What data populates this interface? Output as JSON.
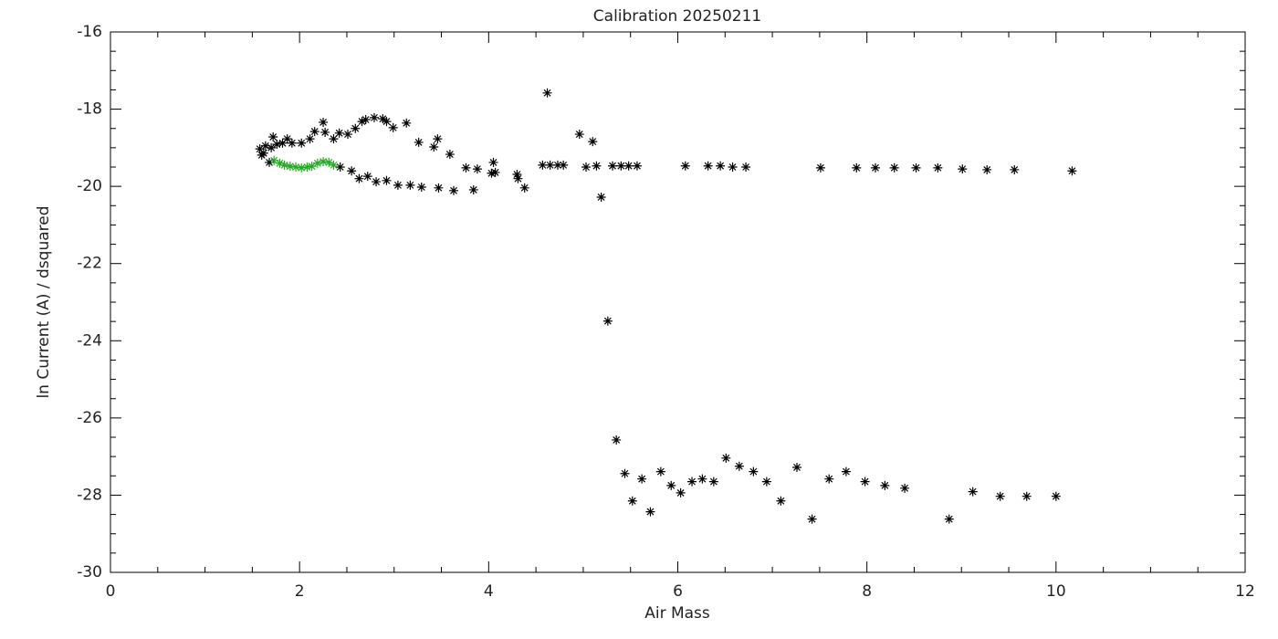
{
  "chart_data": {
    "type": "scatter",
    "title": "Calibration 20250211",
    "x_label": "Air Mass",
    "y_label": "ln Current (A) / dsquared",
    "xlim": [
      0,
      12
    ],
    "xticks": [
      0,
      2,
      4,
      6,
      8,
      10,
      12
    ],
    "ylim": [
      -30,
      -16
    ],
    "yticks": [
      -30,
      -28,
      -26,
      -24,
      -22,
      -20,
      -18,
      -16
    ],
    "marker": "asterisk",
    "series": [
      {
        "color": "#000000",
        "x": [
          4.62,
          4.96,
          5.1,
          5.19,
          5.26,
          5.35,
          5.44,
          5.52,
          5.62,
          5.71,
          5.82,
          5.93,
          6.03,
          6.15,
          6.26,
          6.38,
          6.51,
          6.65,
          6.8,
          6.94,
          7.09,
          7.26,
          7.42,
          7.6,
          7.78,
          7.98,
          8.19,
          8.4,
          8.87,
          9.12,
          9.41,
          9.69,
          10.0,
          4.57,
          4.65,
          4.73,
          4.79,
          5.03,
          5.14,
          5.31,
          5.4,
          5.48,
          5.57,
          6.08,
          6.32,
          6.45,
          6.58,
          6.72,
          7.51,
          7.89,
          8.09,
          8.29,
          8.52,
          8.75,
          9.01,
          9.27,
          9.56,
          10.17,
          2.43,
          2.55,
          2.63,
          2.72,
          2.81,
          2.92,
          3.04,
          3.17,
          3.29,
          3.47,
          3.63,
          3.84,
          3.76,
          3.88,
          4.03,
          4.07,
          4.05,
          4.3,
          4.31,
          4.38,
          1.72,
          1.87,
          2.02,
          2.11,
          2.16,
          2.25,
          2.27,
          2.36,
          2.42,
          2.51,
          2.59,
          2.66,
          2.7,
          2.79,
          2.88,
          2.92,
          2.99,
          3.13,
          3.26,
          3.42,
          3.46,
          3.59,
          1.58,
          1.6,
          1.62,
          1.64,
          1.68,
          1.7,
          1.76,
          1.82,
          1.92
        ],
        "values": [
          -17.58,
          -18.65,
          -18.84,
          -20.28,
          -23.49,
          -26.57,
          -27.44,
          -28.15,
          -27.58,
          -28.43,
          -27.39,
          -27.75,
          -27.94,
          -27.65,
          -27.58,
          -27.65,
          -27.04,
          -27.25,
          -27.39,
          -27.65,
          -28.15,
          -27.28,
          -28.62,
          -27.58,
          -27.39,
          -27.65,
          -27.75,
          -27.82,
          -28.62,
          -27.91,
          -28.03,
          -28.03,
          -28.03,
          -19.45,
          -19.45,
          -19.45,
          -19.45,
          -19.5,
          -19.47,
          -19.47,
          -19.47,
          -19.47,
          -19.47,
          -19.47,
          -19.47,
          -19.47,
          -19.5,
          -19.5,
          -19.52,
          -19.52,
          -19.52,
          -19.52,
          -19.52,
          -19.52,
          -19.55,
          -19.57,
          -19.57,
          -19.6,
          -19.5,
          -19.6,
          -19.8,
          -19.74,
          -19.88,
          -19.85,
          -19.97,
          -19.97,
          -20.02,
          -20.04,
          -20.11,
          -20.09,
          -19.52,
          -19.55,
          -19.66,
          -19.64,
          -19.38,
          -19.69,
          -19.8,
          -20.04,
          -18.72,
          -18.77,
          -18.88,
          -18.77,
          -18.58,
          -18.34,
          -18.6,
          -18.77,
          -18.62,
          -18.65,
          -18.5,
          -18.32,
          -18.27,
          -18.22,
          -18.25,
          -18.32,
          -18.48,
          -18.36,
          -18.86,
          -18.98,
          -18.77,
          -19.17,
          -19.03,
          -19.19,
          -19.14,
          -18.95,
          -19.38,
          -19.0,
          -18.91,
          -18.88,
          -18.88
        ]
      },
      {
        "color": "#22aa22",
        "x": [
          1.73,
          1.79,
          1.84,
          1.9,
          1.96,
          2.02,
          2.08,
          2.13,
          2.19,
          2.25,
          2.31,
          2.36
        ],
        "values": [
          -19.33,
          -19.4,
          -19.45,
          -19.48,
          -19.5,
          -19.52,
          -19.5,
          -19.48,
          -19.4,
          -19.36,
          -19.38,
          -19.45
        ]
      }
    ]
  }
}
